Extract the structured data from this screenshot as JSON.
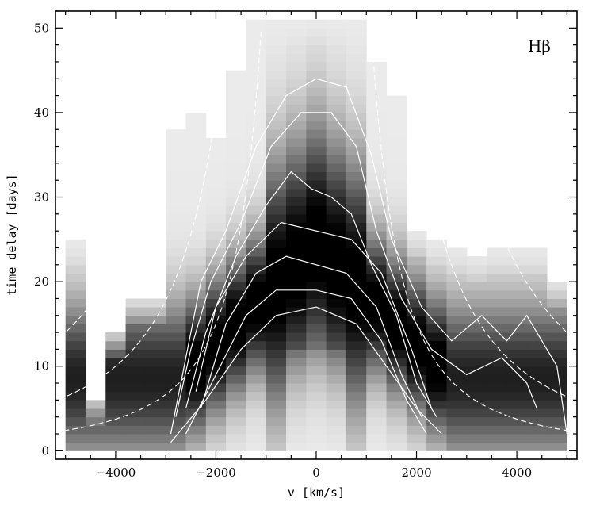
{
  "chart_data": {
    "type": "heatmap",
    "panel_label": "Hβ",
    "xlabel": "v [km/s]",
    "ylabel": "time delay [days]",
    "xlim": [
      -5200,
      5200
    ],
    "ylim": [
      -1,
      52
    ],
    "x_ticks": [
      -4000,
      -2000,
      0,
      2000,
      4000
    ],
    "y_ticks": [
      0,
      10,
      20,
      30,
      40,
      50
    ],
    "x_tick_labels": [
      "−4000",
      "−2000",
      "0",
      "2000",
      "4000"
    ],
    "y_tick_labels": [
      "0",
      "10",
      "20",
      "30",
      "40",
      "50"
    ],
    "colormap": "grayscale (white = low, black = high)",
    "velocity_bins_kms": [
      -4800,
      -4400,
      -4000,
      -3600,
      -3200,
      -2800,
      -2400,
      -2000,
      -1600,
      -1200,
      -800,
      -400,
      0,
      400,
      800,
      1200,
      1600,
      2000,
      2400,
      2800,
      3200,
      3600,
      4000,
      4400,
      4800
    ],
    "max_delay_days": [
      25,
      6,
      14,
      18,
      18,
      38,
      40,
      37,
      45,
      51,
      51,
      51,
      51,
      51,
      51,
      46,
      42,
      26,
      25,
      24,
      23,
      24,
      24,
      24,
      20
    ],
    "contours": [
      {
        "level": 1,
        "points": [
          [
            -2900,
            2
          ],
          [
            -2600,
            11
          ],
          [
            -2300,
            20
          ],
          [
            -1800,
            26
          ],
          [
            -1200,
            36
          ],
          [
            -600,
            42
          ],
          [
            0,
            44
          ],
          [
            600,
            43
          ],
          [
            1100,
            35
          ],
          [
            1500,
            25
          ],
          [
            2100,
            17
          ],
          [
            2700,
            13
          ],
          [
            3300,
            16
          ],
          [
            3800,
            13
          ],
          [
            4200,
            16
          ],
          [
            4800,
            10
          ],
          [
            5000,
            2
          ]
        ]
      },
      {
        "level": 2,
        "points": [
          [
            -2800,
            4
          ],
          [
            -2500,
            12
          ],
          [
            -2100,
            20
          ],
          [
            -1500,
            27
          ],
          [
            -900,
            36
          ],
          [
            -300,
            40
          ],
          [
            300,
            40
          ],
          [
            800,
            36
          ],
          [
            1200,
            26
          ],
          [
            1700,
            18
          ],
          [
            2300,
            12
          ],
          [
            3000,
            9
          ],
          [
            3700,
            11
          ],
          [
            4200,
            8
          ],
          [
            4400,
            5
          ]
        ]
      },
      {
        "level": 3,
        "points": [
          [
            -2600,
            5
          ],
          [
            -2200,
            14
          ],
          [
            -1600,
            23
          ],
          [
            -1000,
            29
          ],
          [
            -500,
            33
          ],
          [
            -100,
            31
          ],
          [
            300,
            30
          ],
          [
            700,
            28
          ],
          [
            1100,
            22
          ],
          [
            1600,
            16
          ],
          [
            2000,
            8
          ],
          [
            2400,
            4
          ]
        ]
      },
      {
        "level": 4,
        "points": [
          [
            -2400,
            7
          ],
          [
            -2000,
            17
          ],
          [
            -1400,
            23
          ],
          [
            -700,
            27
          ],
          [
            0,
            26
          ],
          [
            700,
            25
          ],
          [
            1300,
            21
          ],
          [
            1900,
            12
          ],
          [
            2300,
            5
          ]
        ]
      },
      {
        "level": 5,
        "points": [
          [
            -2300,
            5
          ],
          [
            -1800,
            15
          ],
          [
            -1200,
            21
          ],
          [
            -600,
            23
          ],
          [
            0,
            22
          ],
          [
            600,
            21
          ],
          [
            1200,
            17
          ],
          [
            1700,
            9
          ],
          [
            2100,
            4
          ]
        ]
      },
      {
        "level": 6,
        "points": [
          [
            -2600,
            2
          ],
          [
            -2000,
            9
          ],
          [
            -1400,
            16
          ],
          [
            -800,
            19
          ],
          [
            0,
            19
          ],
          [
            700,
            18
          ],
          [
            1300,
            13
          ],
          [
            1800,
            6
          ],
          [
            2200,
            2
          ]
        ]
      },
      {
        "level": 7,
        "points": [
          [
            -2900,
            1
          ],
          [
            -2200,
            6
          ],
          [
            -1500,
            12
          ],
          [
            -800,
            16
          ],
          [
            0,
            17
          ],
          [
            800,
            15
          ],
          [
            1400,
            10
          ],
          [
            2000,
            5
          ],
          [
            2500,
            2
          ]
        ]
      }
    ],
    "envelope_curves_note": "dashed white virial envelopes, delay ∝ v^-2"
  }
}
